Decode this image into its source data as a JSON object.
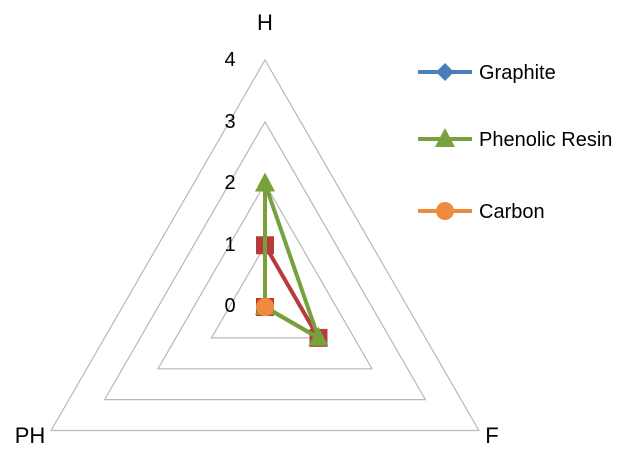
{
  "chart_data": {
    "type": "radar",
    "axes": [
      "H",
      "F",
      "PH"
    ],
    "r_ticks": [
      "0",
      "1",
      "2",
      "3",
      "4"
    ],
    "r_range": [
      0,
      4
    ],
    "grid": true,
    "legend_position": "right",
    "series": [
      {
        "name": "Graphite",
        "values": [
          0,
          1,
          0
        ],
        "color": "#4a7ebb",
        "marker": "diamond",
        "visible_line": false
      },
      {
        "name": "Phenolic Resin",
        "values": [
          2,
          1,
          0
        ],
        "color": "#77a13b",
        "marker": "triangle",
        "visible_line": true
      },
      {
        "name": "Carbon",
        "values": [
          0,
          0,
          0
        ],
        "color": "#ee8b3f",
        "marker": "circle",
        "visible_line": true
      }
    ],
    "unlabeled_series": [
      {
        "values": [
          1,
          1,
          0
        ],
        "color": "#b83b3b",
        "marker": "square"
      }
    ]
  }
}
